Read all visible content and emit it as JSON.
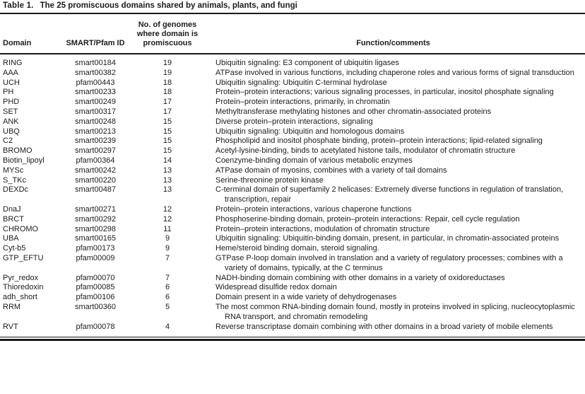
{
  "table": {
    "label": "Table 1.",
    "title": "The 25 promiscuous domains shared by animals, plants, and fungi",
    "columns": {
      "domain": "Domain",
      "id": "SMART/Pfam ID",
      "genomes": "No. of genomes where domain is promiscuous",
      "function": "Function/comments"
    },
    "rows": [
      {
        "domain": "RING",
        "id": "smart00184",
        "genomes": "19",
        "function": "Ubiquitin signaling: E3 component of ubiquitin ligases"
      },
      {
        "domain": "AAA",
        "id": "smart00382",
        "genomes": "19",
        "function": "ATPase involved in various functions, including chaperone roles and various forms of signal transduction"
      },
      {
        "domain": "UCH",
        "id": "pfam00443",
        "genomes": "18",
        "function": "Ubiquitin signaling: Ubiquitin C-terminal hydrolase"
      },
      {
        "domain": "PH",
        "id": "smart00233",
        "genomes": "18",
        "function": "Protein–protein interactions; various signaling processes, in particular, inositol phosphate signaling"
      },
      {
        "domain": "PHD",
        "id": "smart00249",
        "genomes": "17",
        "function": "Protein–protein interactions, primarily, in chromatin"
      },
      {
        "domain": "SET",
        "id": "smart00317",
        "genomes": "17",
        "function": "Methyltransferase methylating histones and other chromatin-associated proteins"
      },
      {
        "domain": "ANK",
        "id": "smart00248",
        "genomes": "15",
        "function": "Diverse protein–protein interactions, signaling"
      },
      {
        "domain": "UBQ",
        "id": "smart00213",
        "genomes": "15",
        "function": "Ubiquitin signaling: Ubiquitin and homologous domains"
      },
      {
        "domain": "C2",
        "id": "smart00239",
        "genomes": "15",
        "function": "Phospholipid and inositol phosphate binding, protein–protein interactions; lipid-related signaling"
      },
      {
        "domain": "BROMO",
        "id": "smart00297",
        "genomes": "15",
        "function": "Acetyl-lysine-binding, binds to acetylated histone tails, modulator of chromatin structure"
      },
      {
        "domain": "Biotin_lipoyl",
        "id": "pfam00364",
        "genomes": "14",
        "function": "Coenzyme-binding domain of various metabolic enzymes"
      },
      {
        "domain": "MYSc",
        "id": "smart00242",
        "genomes": "13",
        "function": "ATPase domain of myosins, combines with a variety of tail domains"
      },
      {
        "domain": "S_TKc",
        "id": "smart00220",
        "genomes": "13",
        "function": "Serine-threonine protein kinase"
      },
      {
        "domain": "DEXDc",
        "id": "smart00487",
        "genomes": "13",
        "function": "C-terminal domain of superfamily 2 helicases: Extremely diverse functions in regulation of translation, transcription, repair"
      },
      {
        "domain": "DnaJ",
        "id": "smart00271",
        "genomes": "12",
        "function": "Protein–protein interactions, various chaperone functions"
      },
      {
        "domain": "BRCT",
        "id": "smart00292",
        "genomes": "12",
        "function": "Phosphoserine-binding domain, protein–protein interactions: Repair, cell cycle regulation"
      },
      {
        "domain": "CHROMO",
        "id": "smart00298",
        "genomes": "11",
        "function": "Protein–protein interactions, modulation of chromatin structure"
      },
      {
        "domain": "UBA",
        "id": "smart00165",
        "genomes": "9",
        "function": "Ubiquitin signaling: Ubiquitin-binding domain, present, in particular, in chromatin-associated proteins"
      },
      {
        "domain": "Cyt-b5",
        "id": "pfam00173",
        "genomes": "9",
        "function": "Heme/steroid binding domain, steroid signaling."
      },
      {
        "domain": "GTP_EFTU",
        "id": "pfam00009",
        "genomes": "7",
        "function": "GTPase P-loop domain involved in translation and a variety of regulatory processes; combines with a variety of domains, typically, at the C terminus"
      },
      {
        "domain": "Pyr_redox",
        "id": "pfam00070",
        "genomes": "7",
        "function": "NADH-binding domain combining with other domains in a variety of oxidoreductases"
      },
      {
        "domain": "Thioredoxin",
        "id": "pfam00085",
        "genomes": "6",
        "function": "Widespread disulfide redox domain"
      },
      {
        "domain": "adh_short",
        "id": "pfam00106",
        "genomes": "6",
        "function": "Domain present in a wide variety of dehydrogenases"
      },
      {
        "domain": "RRM",
        "id": "smart00360",
        "genomes": "5",
        "function": "The most common RNA-binding domain found, mostly in proteins involved in splicing, nucleocytoplasmic RNA transport, and chromatin remodeling"
      },
      {
        "domain": "RVT",
        "id": "pfam00078",
        "genomes": "4",
        "function": "Reverse transcriptase domain combining with other domains in a broad variety of mobile elements"
      }
    ]
  },
  "colors": {
    "text": "#1c1c1c",
    "rule": "#1a1a1a",
    "background": "#ffffff"
  }
}
